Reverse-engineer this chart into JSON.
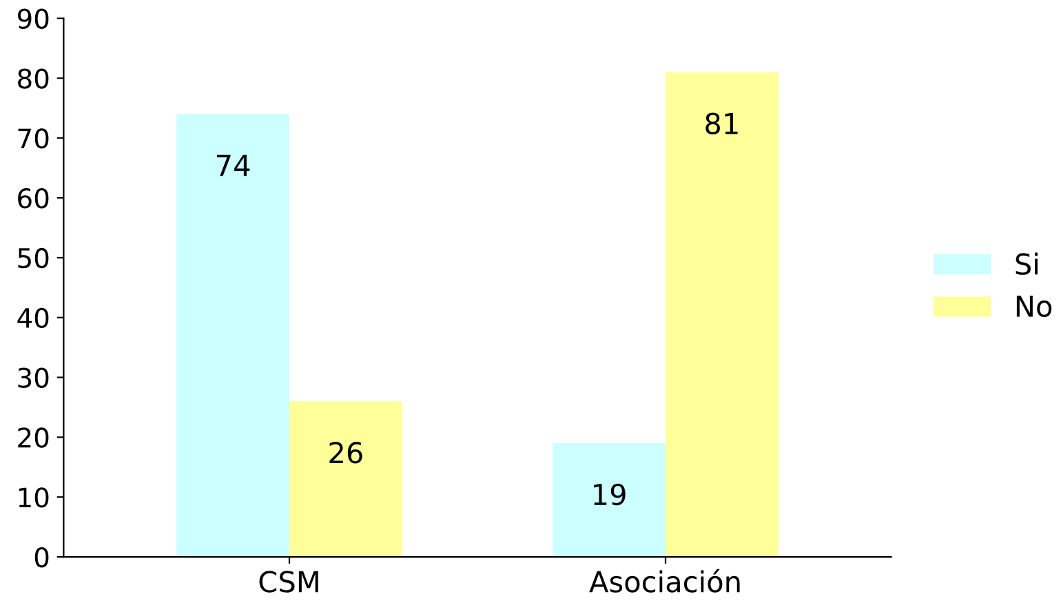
{
  "chart_data": {
    "type": "bar",
    "categories": [
      "CSM",
      "Asociación"
    ],
    "series": [
      {
        "name": "Si",
        "color": "#ccffff",
        "values": [
          74,
          19
        ]
      },
      {
        "name": "No",
        "color": "#ffff99",
        "values": [
          26,
          81
        ]
      }
    ],
    "ylim": [
      0,
      90
    ],
    "yticks": [
      0,
      10,
      20,
      30,
      40,
      50,
      60,
      70,
      80,
      90
    ],
    "data_labels": true,
    "legend": "right",
    "grid": false
  }
}
